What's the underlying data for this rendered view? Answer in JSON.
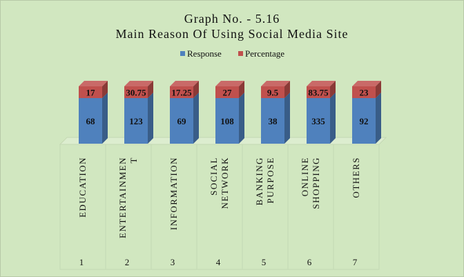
{
  "colors": {
    "background": "#d1e7c0",
    "response": "#4f81bd",
    "percentage": "#c0504d"
  },
  "chart_data": {
    "type": "bar",
    "stacked": true,
    "three_d": true,
    "title": "Graph No. - 5.16",
    "subtitle": "Main Reason Of Using Social Media Site",
    "legend_position": "top",
    "categories": [
      "1",
      "2",
      "3",
      "4",
      "5",
      "6",
      "7"
    ],
    "category_names": [
      [
        "EDUCATION"
      ],
      [
        "ENTERTAINMEN",
        "T"
      ],
      [
        "INFORMATION"
      ],
      [
        "SOCIAL",
        "NETWORK"
      ],
      [
        "BANKING",
        "PURPOSE"
      ],
      [
        "ONLINE",
        "SHOPPING"
      ],
      [
        "OTHERS"
      ]
    ],
    "series": [
      {
        "name": "Response",
        "values": [
          68,
          123,
          69,
          108,
          38,
          335,
          92
        ]
      },
      {
        "name": "Percentage",
        "values": [
          17,
          30.75,
          17.25,
          27,
          9.5,
          83.75,
          23
        ]
      }
    ]
  }
}
